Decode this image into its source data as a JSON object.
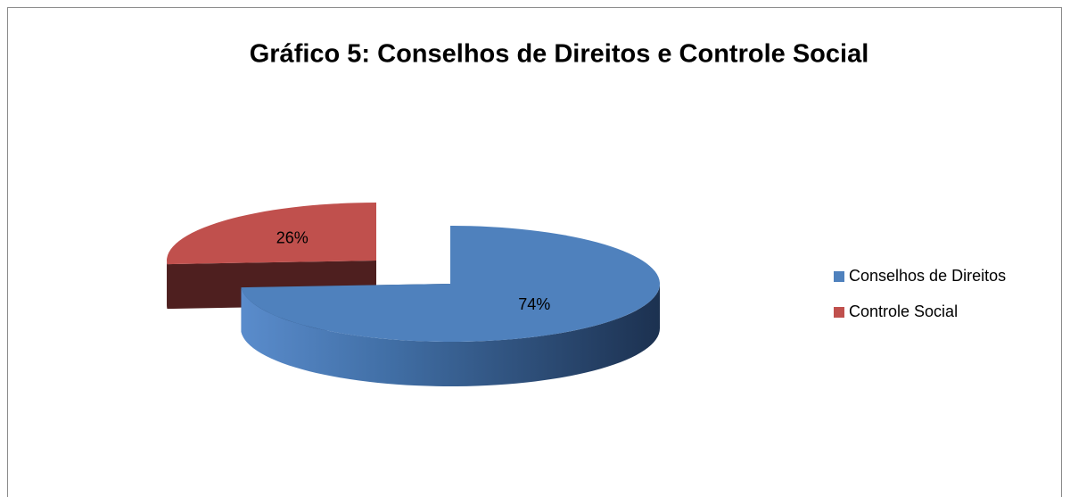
{
  "chart_data": {
    "type": "pie3d",
    "title": "Gráfico 5: Conselhos de Direitos e Controle Social",
    "categories": [
      "Conselhos de Direitos",
      "Controle Social"
    ],
    "values": [
      74,
      26
    ],
    "value_labels": [
      "74%",
      "26%"
    ],
    "colors": [
      "#4f81bd",
      "#c0504d"
    ],
    "legend": "right"
  }
}
